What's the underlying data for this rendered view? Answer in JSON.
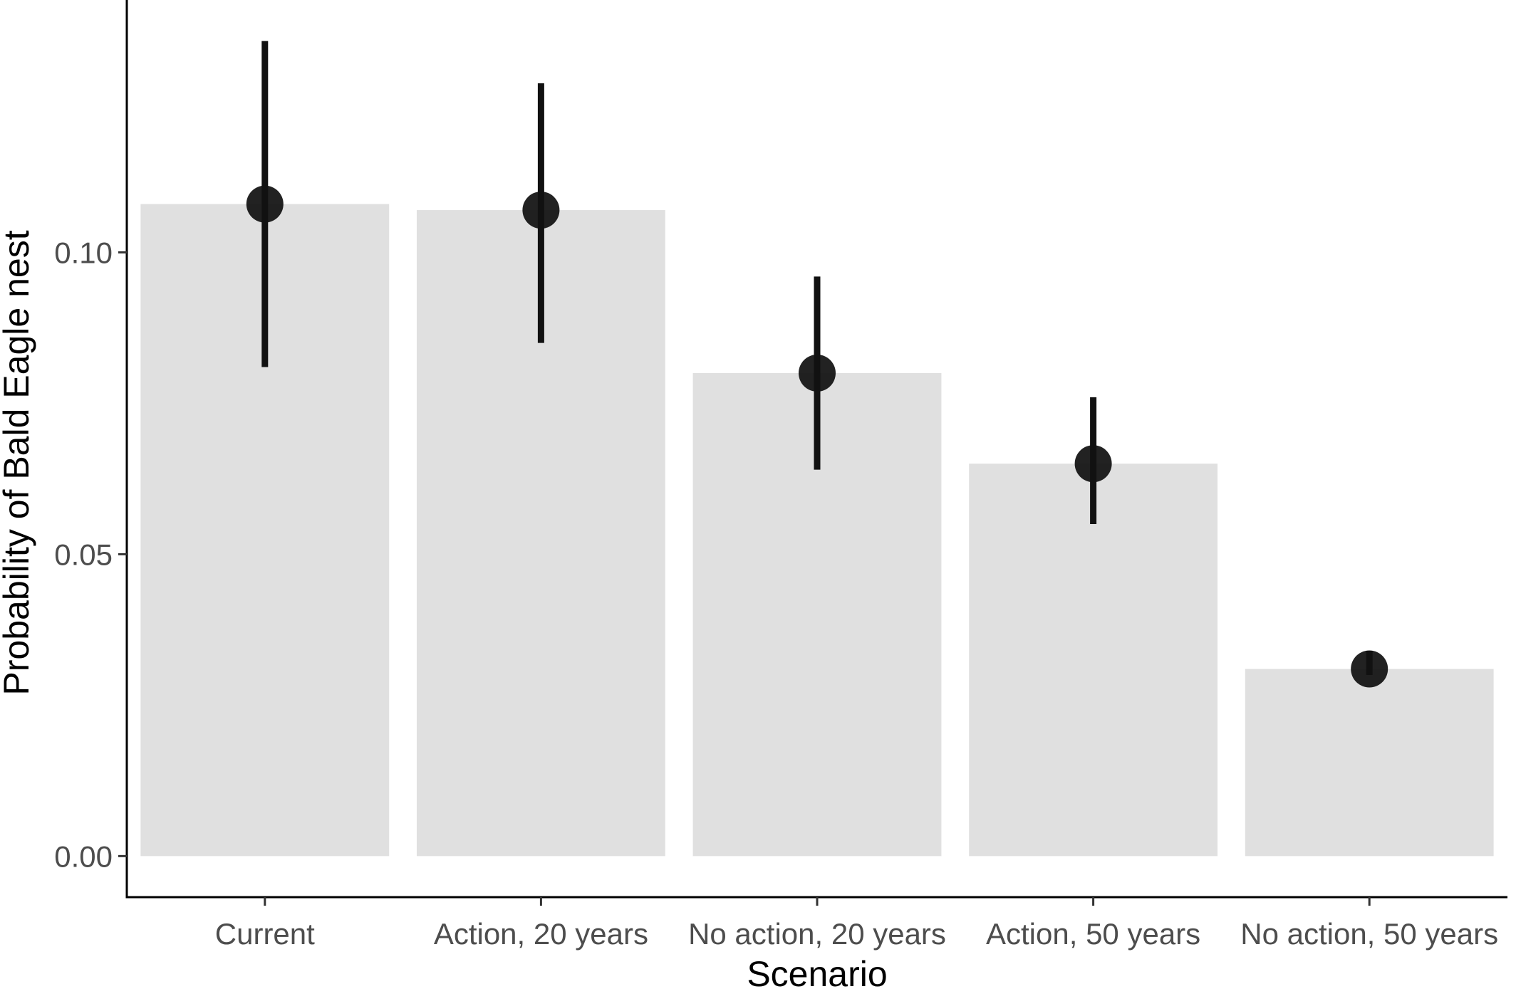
{
  "chart_data": {
    "type": "bar",
    "title": "",
    "xlabel": "Scenario",
    "ylabel": "Probability of Bald Eagle nest",
    "categories": [
      "Current",
      "Action, 20 years",
      "No action, 20 years",
      "Action, 50 years",
      "No action, 50 years"
    ],
    "values": [
      0.108,
      0.107,
      0.08,
      0.065,
      0.031
    ],
    "error_lower": [
      0.081,
      0.085,
      0.064,
      0.055,
      0.03
    ],
    "error_upper": [
      0.135,
      0.128,
      0.096,
      0.076,
      0.034
    ],
    "ylim": [
      -0.0068,
      0.1418
    ],
    "yticks": [
      0.0,
      0.05,
      0.1
    ],
    "ytick_labels": [
      "0.00",
      "0.05",
      "0.10"
    ],
    "grid": false,
    "legend": "none",
    "colors": {
      "bar": "#e0e0e0",
      "point": "#111111",
      "errorbar": "#111111",
      "axis": "#000000",
      "tick_label": "#4d4d4d"
    }
  }
}
